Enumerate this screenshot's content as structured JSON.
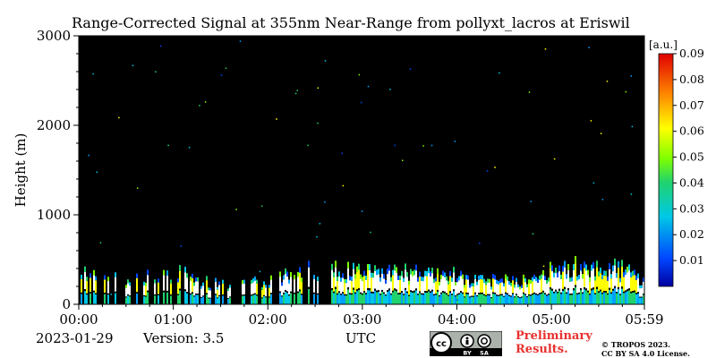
{
  "figure": {
    "title": "Range-Corrected Signal at 355nm Near-Range from pollyxt_lacros at Eriswil",
    "date": "2023-01-29",
    "version": "Version: 3.5",
    "preliminary": [
      "Preliminary",
      "Results."
    ],
    "copyright": [
      "© TROPOS 2023.",
      "CC BY SA 4.0 License."
    ],
    "license_badge": {
      "main": "cc",
      "terms": [
        "BY",
        "SA"
      ]
    }
  },
  "chart_data": {
    "type": "heatmap",
    "title": "Range-Corrected Signal at 355nm Near-Range from pollyxt_lacros at Eriswil",
    "xlabel": "UTC",
    "ylabel": "Height (m)",
    "xlim": [
      "00:00",
      "05:59"
    ],
    "ylim": [
      0,
      3000
    ],
    "x_ticks": [
      "00:00",
      "01:00",
      "02:00",
      "03:00",
      "04:00",
      "05:00",
      "05:59"
    ],
    "y_ticks": [
      "0",
      "1000",
      "2000",
      "3000"
    ],
    "colorbar": {
      "unit": "[a.u.]",
      "range": [
        0.0,
        0.09
      ],
      "ticks": [
        "0.01",
        "0.02",
        "0.03",
        "0.04",
        "0.05",
        "0.06",
        "0.07",
        "0.08",
        "0.09"
      ],
      "colormap": "jet"
    },
    "background": "#000000",
    "grid": false,
    "data_gap": [
      "02:32",
      "02:40"
    ],
    "layer_top_profile": {
      "time": [
        "00:00",
        "00:30",
        "01:00",
        "01:30",
        "02:00",
        "02:30",
        "02:40",
        "03:00",
        "03:30",
        "04:00",
        "04:15",
        "04:30",
        "04:45",
        "05:00",
        "05:15",
        "05:30",
        "05:45",
        "05:59"
      ],
      "height_m": [
        450,
        300,
        450,
        250,
        300,
        500,
        450,
        450,
        420,
        380,
        300,
        360,
        300,
        450,
        500,
        480,
        470,
        300
      ]
    }
  }
}
